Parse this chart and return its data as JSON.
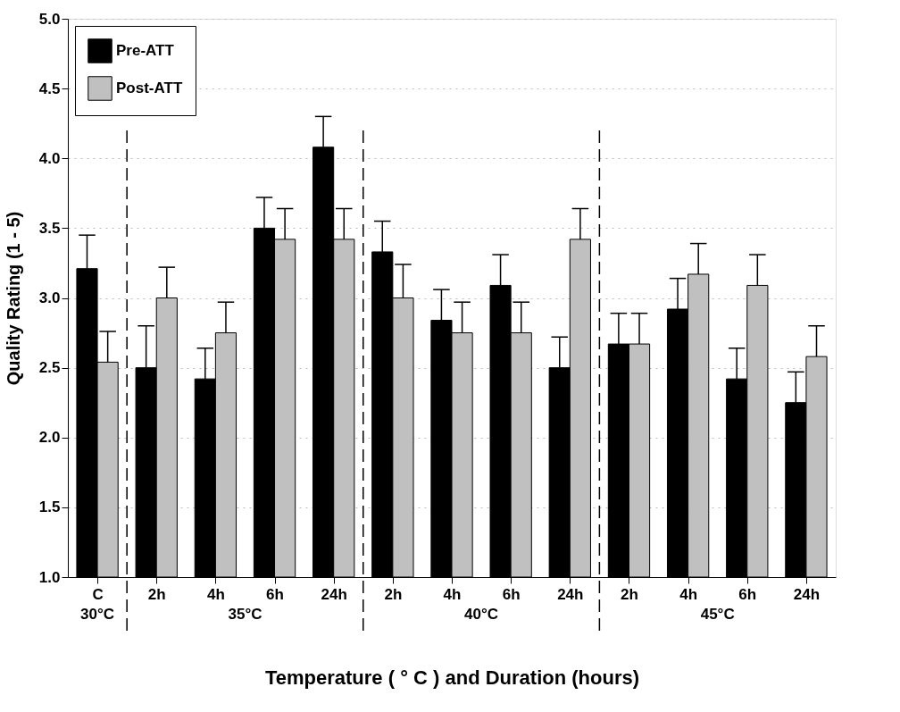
{
  "chart_data": {
    "type": "bar",
    "xlabel": "Temperature ( ° C ) and Duration (hours)",
    "ylabel": "Quality Rating (1 - 5)",
    "categories": [
      "C",
      "2h",
      "4h",
      "6h",
      "24h",
      "2h",
      "4h",
      "6h",
      "24h",
      "2h",
      "4h",
      "6h",
      "24h"
    ],
    "series": [
      {
        "name": "Pre-ATT",
        "color": "#000000",
        "values": [
          3.21,
          2.5,
          2.42,
          3.5,
          4.08,
          3.33,
          2.84,
          3.09,
          2.5,
          2.67,
          2.92,
          2.42,
          2.25
        ],
        "errors": [
          0.24,
          0.3,
          0.22,
          0.22,
          0.22,
          0.22,
          0.22,
          0.22,
          0.22,
          0.22,
          0.22,
          0.22,
          0.22
        ]
      },
      {
        "name": "Post-ATT",
        "color": "#c0c0c0",
        "values": [
          2.54,
          3.0,
          2.75,
          3.42,
          3.42,
          3.0,
          2.75,
          2.75,
          3.42,
          2.67,
          3.17,
          3.09,
          2.58
        ],
        "errors": [
          0.22,
          0.22,
          0.22,
          0.22,
          0.22,
          0.24,
          0.22,
          0.22,
          0.22,
          0.22,
          0.22,
          0.22,
          0.22
        ]
      }
    ],
    "ylim": [
      1.0,
      5.0
    ],
    "yticks": [
      {
        "value": 1.0,
        "label": "1.0"
      },
      {
        "value": 1.5,
        "label": "1.5"
      },
      {
        "value": 2.0,
        "label": "2.0"
      },
      {
        "value": 2.5,
        "label": "2.5"
      },
      {
        "value": 3.0,
        "label": "3.0"
      },
      {
        "value": 3.5,
        "label": "3.5"
      },
      {
        "value": 4.0,
        "label": "4.0"
      },
      {
        "value": 4.5,
        "label": "4.5"
      },
      {
        "value": 5.0,
        "label": "5.0"
      }
    ],
    "annotations": [
      "30°C",
      "35°C",
      "40°C",
      "45°C"
    ],
    "grid": "y",
    "legend": "top left"
  }
}
